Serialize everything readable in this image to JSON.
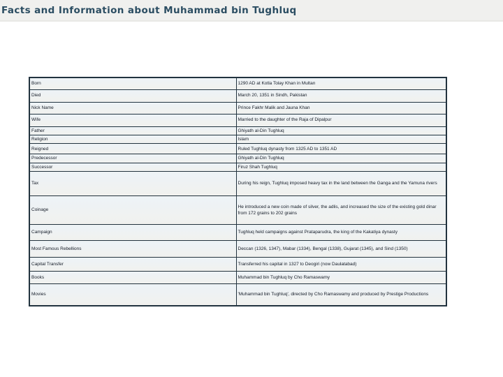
{
  "page_title": "Facts and Information about Muhammad bin Tughluq",
  "colors": {
    "header_band_bg": "#f0f0ee",
    "title_text": "#2b4d62",
    "table_border": "#22333f",
    "cell_bg": "#f1f1ee"
  },
  "table": {
    "rows": [
      {
        "label": "Born",
        "value": "1290 AD at Kotla Tolay Khan in Multan"
      },
      {
        "label": "Died",
        "value": "March 20, 1351 in Sindh, Pakistan"
      },
      {
        "label": "Nick Name",
        "value": "Prince Fakhr Malik and Jauna Khan"
      },
      {
        "label": "Wife",
        "value": "Married to the daughter of the Raja of Dipalpur"
      },
      {
        "label": "Father",
        "value": "Ghiyath al-Din Tughluq"
      },
      {
        "label": "Religion",
        "value": "Islam"
      },
      {
        "label": "Reigned",
        "value": "Ruled Tughluq dynasty from 1325 AD to 1351 AD"
      },
      {
        "label": "Predecessor",
        "value": "Ghiyath al-Din Tughluq"
      },
      {
        "label": "Successor",
        "value": "Firuz Shah Tughluq"
      },
      {
        "label": "Tax",
        "value": "During his reign, Tughluq imposed heavy tax in the land between the Ganga and the Yamuna rivers"
      },
      {
        "label": "Coinage",
        "value": "He introduced a new coin made of silver, the adlis, and increased the size of the existing gold dinar from 172 grains to 202 grains"
      },
      {
        "label": "Campaign",
        "value": "Tughluq held campaigns against Prataparudra, the king of the Kakatiya dynasty"
      },
      {
        "label": "Most Famous Rebellions",
        "value": "Deccan (1326, 1347), Mabar (1334), Bengal (1338), Gujarat (1345), and Sind (1350)"
      },
      {
        "label": "Capital Transfer",
        "value": "Transferred his capital in 1327 to Deogiri (now Daulatabad)"
      },
      {
        "label": "Books",
        "value": "Muhammad bin Tughluq by Cho Ramaswamy"
      },
      {
        "label": "Movies",
        "value": "'Muhammad bin Tughluq', directed by Cho Ramaswamy and produced by Prestige Productions"
      }
    ]
  }
}
